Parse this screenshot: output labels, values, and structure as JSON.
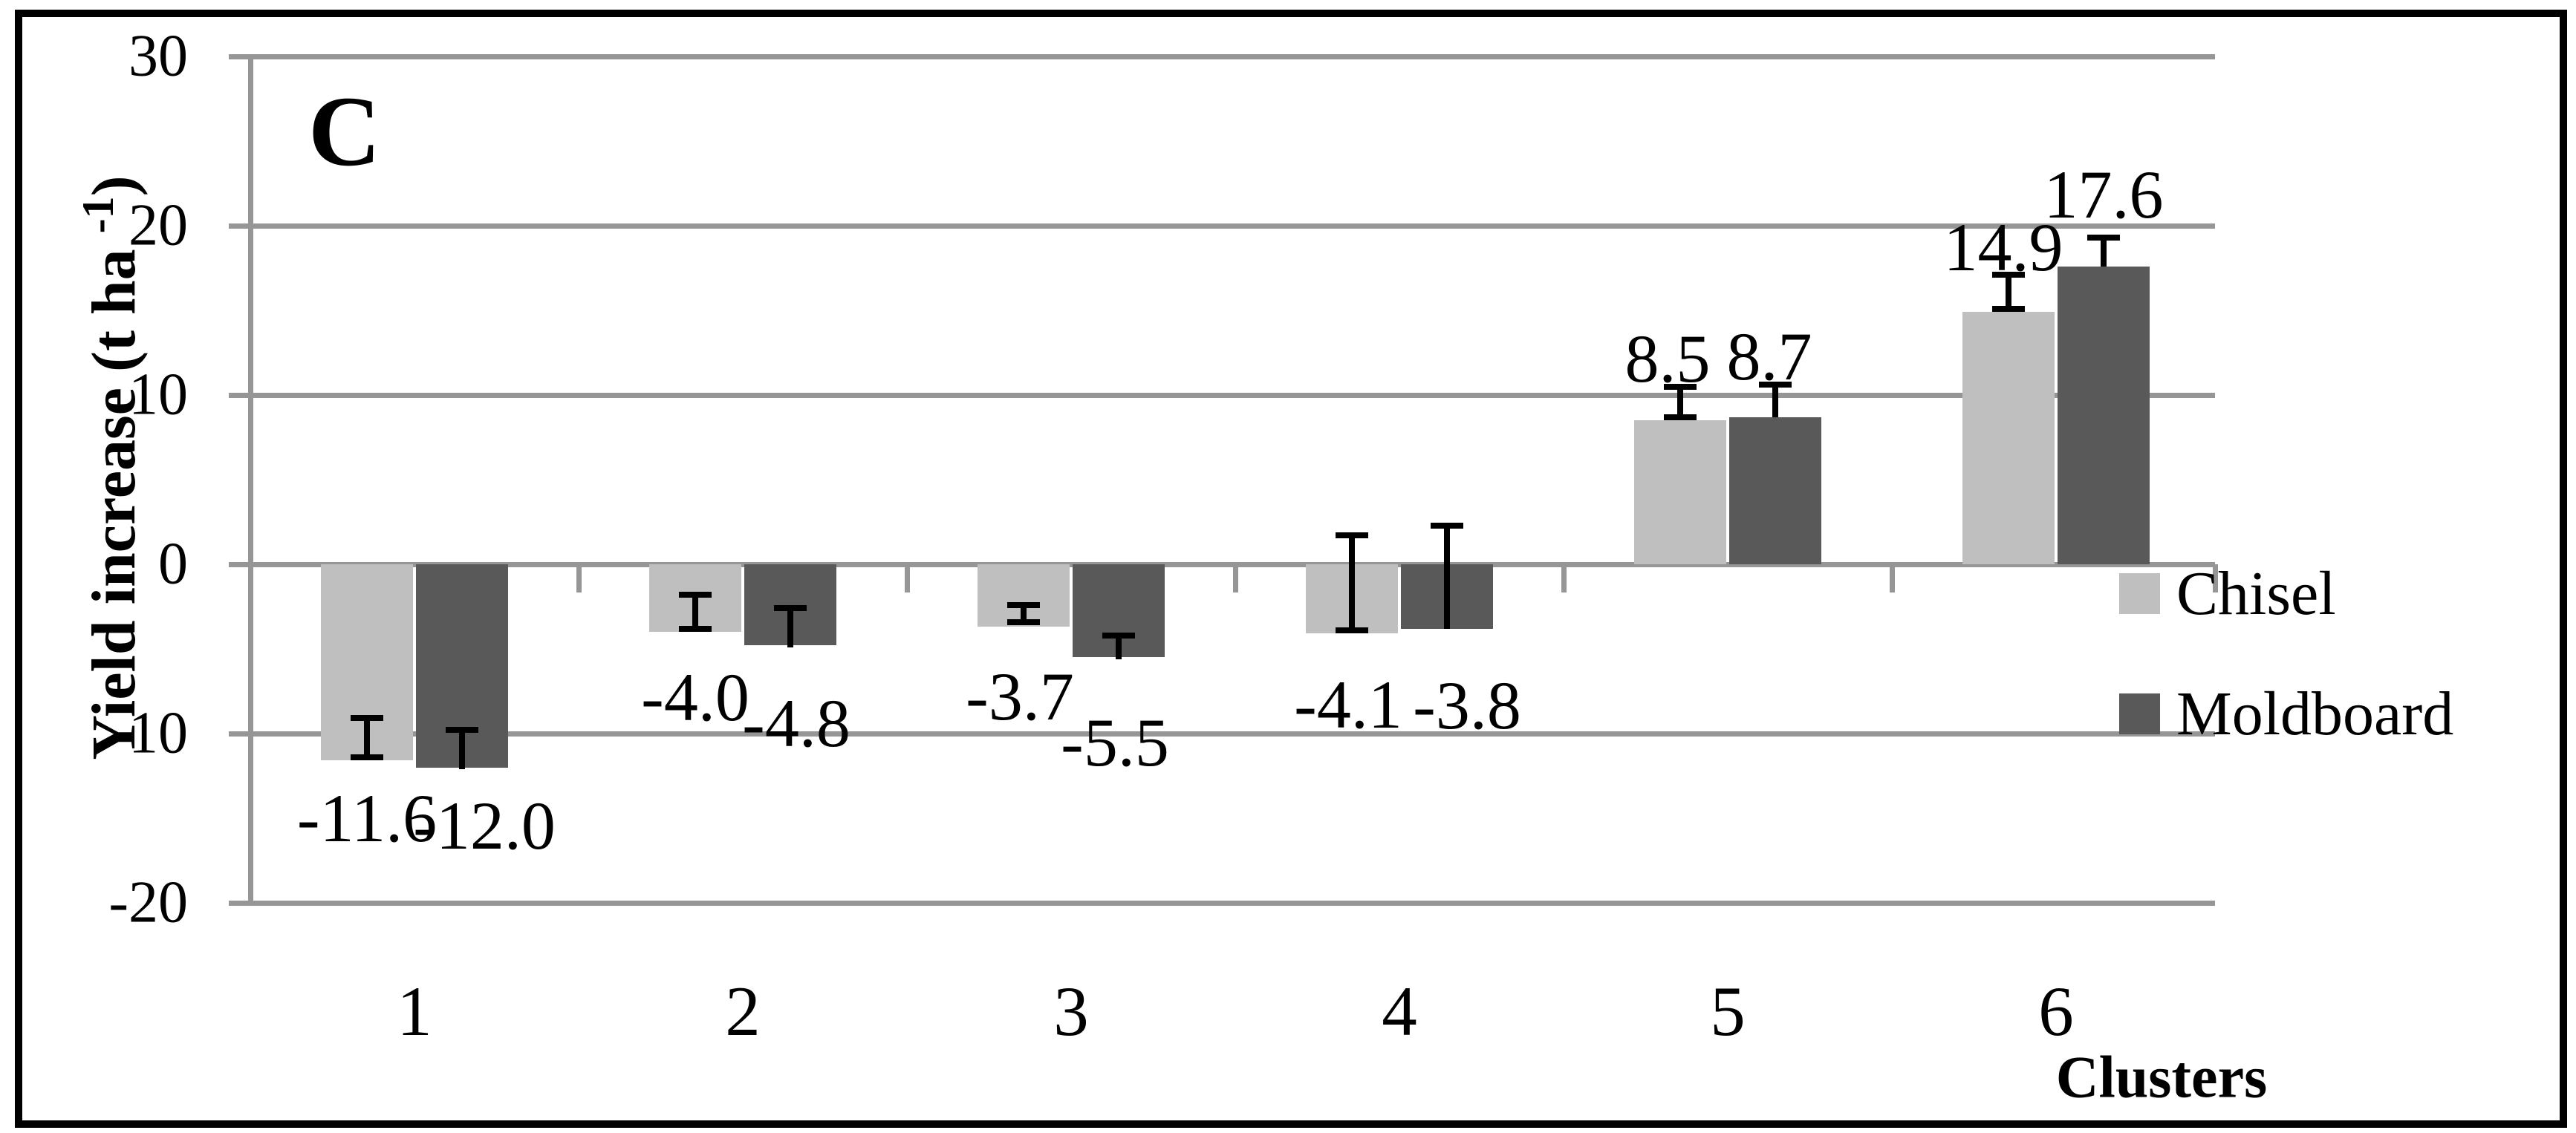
{
  "panel_label": "C",
  "axis": {
    "y_title_pre": "Yield increase (t  ha ",
    "y_title_sup": "-1",
    "y_title_close": ")",
    "x_title": "Clusters",
    "y_tick_labels": [
      "30",
      "20",
      "10",
      "0",
      "-10",
      "-20"
    ],
    "y_tick_values": [
      30,
      20,
      10,
      0,
      -10,
      -20
    ]
  },
  "chart_data": {
    "type": "bar",
    "title": "",
    "xlabel": "Clusters",
    "ylabel": "Yield increase (t ha -1)",
    "categories": [
      "1",
      "2",
      "3",
      "4",
      "5",
      "6"
    ],
    "ylim": [
      -20,
      30
    ],
    "grid": true,
    "legend_position": "right",
    "series": [
      {
        "name": "Chisel",
        "color": "#bfbfbf",
        "values": [
          -11.6,
          -4.0,
          -3.7,
          -4.1,
          8.5,
          14.9
        ],
        "labels": [
          "-11.6",
          "-4.0",
          "-3.7",
          "-4.1",
          "8.5",
          "14.9"
        ],
        "errors": [
          {
            "hi": -9.1,
            "lo": -11.4,
            "cap_lo": true
          },
          {
            "hi": -1.8,
            "lo": -3.8,
            "cap_lo": true
          },
          {
            "hi": -2.4,
            "lo": -3.4,
            "cap_lo": true
          },
          {
            "hi": 1.7,
            "lo": -3.9,
            "cap_lo": true
          },
          {
            "hi": 10.5,
            "lo": 8.7,
            "cap_lo": true
          },
          {
            "hi": 17.1,
            "lo": 15.1,
            "cap_lo": true
          }
        ],
        "label_dx": [
          0,
          0,
          -5,
          -5,
          -17,
          -7
        ],
        "label_dy": [
          0,
          10,
          16,
          18,
          7,
          8
        ]
      },
      {
        "name": "Moldboard",
        "color": "#595959",
        "values": [
          -12.0,
          -4.8,
          -5.5,
          -3.8,
          8.7,
          17.6
        ],
        "labels": [
          "-12.0",
          "-4.8",
          "-5.5",
          "-3.8",
          "8.7",
          "17.6"
        ],
        "errors": [
          {
            "hi": -9.8,
            "lo": -12.1,
            "cap_lo": false
          },
          {
            "hi": -2.6,
            "lo": -4.9,
            "cap_lo": false
          },
          {
            "hi": -4.2,
            "lo": -5.6,
            "cap_lo": false
          },
          {
            "hi": 2.3,
            "lo": -3.8,
            "cap_lo": false
          },
          {
            "hi": 10.6,
            "lo": 8.7,
            "cap_lo": false
          },
          {
            "hi": 19.3,
            "lo": 17.6,
            "cap_lo": false
          }
        ],
        "label_dx": [
          30,
          8,
          -5,
          27,
          -8,
          0
        ],
        "label_dy": [
          0,
          27,
          37,
          25,
          7,
          -13
        ]
      }
    ]
  }
}
